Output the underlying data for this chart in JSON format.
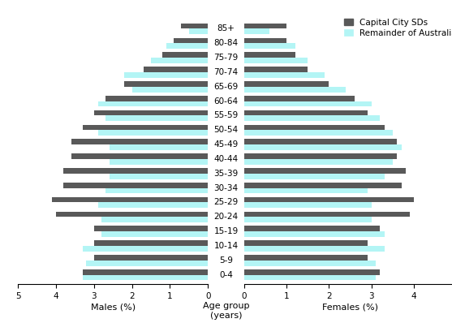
{
  "age_groups": [
    "0-4",
    "5-9",
    "10-14",
    "15-19",
    "20-24",
    "25-29",
    "30-34",
    "35-39",
    "40-44",
    "45-49",
    "50-54",
    "55-59",
    "60-64",
    "65-69",
    "70-74",
    "75-79",
    "80-84",
    "85+"
  ],
  "males_capital": [
    3.3,
    3.0,
    3.0,
    3.0,
    4.0,
    4.1,
    3.8,
    3.8,
    3.6,
    3.6,
    3.3,
    3.0,
    2.7,
    2.2,
    1.7,
    1.2,
    0.9,
    0.7
  ],
  "males_remainder": [
    3.3,
    3.2,
    3.3,
    2.8,
    2.8,
    2.9,
    2.7,
    2.6,
    2.6,
    2.6,
    2.9,
    2.7,
    2.9,
    2.0,
    2.2,
    1.5,
    1.1,
    0.5
  ],
  "females_capital": [
    3.2,
    2.9,
    2.9,
    3.2,
    3.9,
    4.0,
    3.7,
    3.8,
    3.6,
    3.6,
    3.3,
    2.9,
    2.6,
    2.0,
    1.5,
    1.2,
    1.0,
    1.0
  ],
  "females_remainder": [
    3.1,
    3.1,
    3.3,
    3.3,
    3.0,
    3.0,
    2.9,
    3.3,
    3.5,
    3.7,
    3.5,
    3.2,
    3.0,
    2.4,
    1.9,
    1.5,
    1.2,
    0.6
  ],
  "color_capital": "#595959",
  "color_remainder": "#b3f5f5",
  "xlabel_left": "Males (%)",
  "xlabel_right": "Females (%)",
  "xlabel_center": "Age group\n(years)",
  "legend_capital": "Capital City SDs",
  "legend_remainder": "Remainder of Australia",
  "bar_height": 0.38,
  "xlim": 5.0,
  "label_fontsize": 8,
  "tick_fontsize": 7.5,
  "legend_fontsize": 7.5
}
